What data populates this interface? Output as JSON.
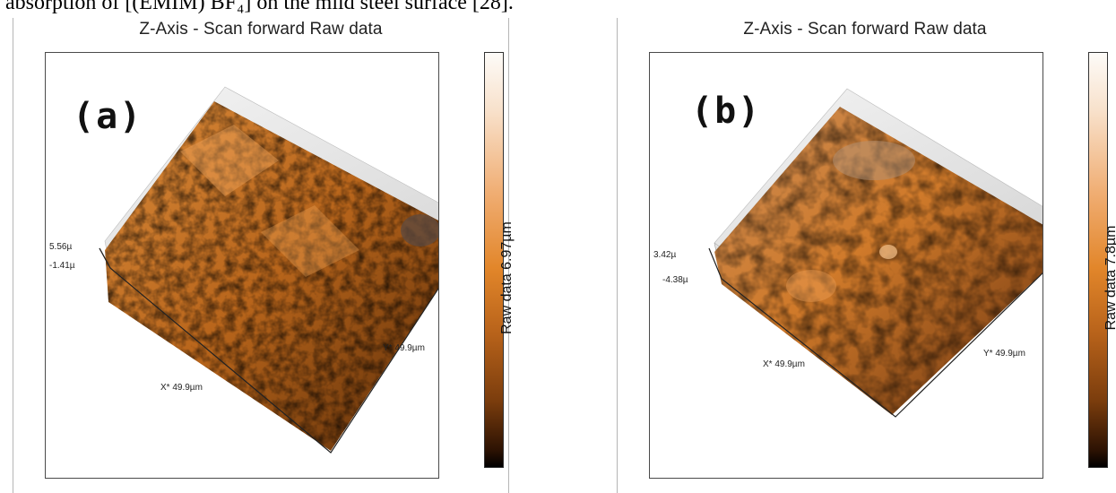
{
  "caption": "absorption of [(EMIM) BF₄] on the mild steel surface [28].",
  "panels": [
    {
      "title": "Z-Axis - Scan forward   Raw data",
      "letter": "(a)",
      "colorbar_label": "Raw data 6.97µm",
      "z_top": "5.56µ",
      "z_bottom": "-1.41µ",
      "x_label": "X* 49.9µm",
      "y_label": "Y* 49.9µm"
    },
    {
      "title": "Z-Axis - Scan forward   Raw data",
      "letter": "(b)",
      "colorbar_label": "Raw data 7.8µm",
      "z_top": "3.42µ",
      "z_bottom": "-4.38µ",
      "x_label": "X* 49.9µm",
      "y_label": "Y* 49.9µm"
    }
  ],
  "colors": {
    "surface_light": "#e8a050",
    "surface_mid": "#c06a1c",
    "surface_dark": "#4a2406",
    "wall": "#ececec"
  }
}
